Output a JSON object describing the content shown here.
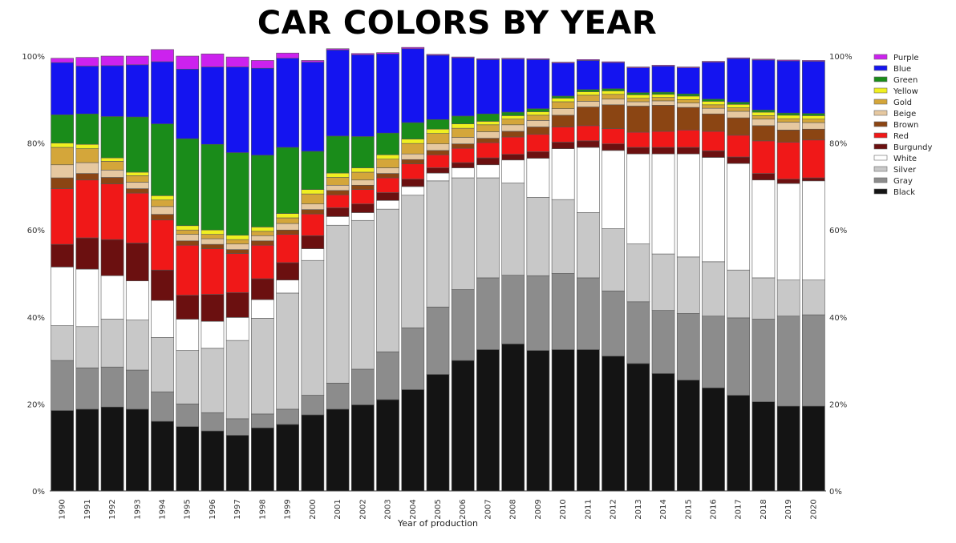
{
  "chart_data": {
    "type": "bar",
    "stacked": true,
    "normalized_percent": true,
    "title": "CAR COLORS BY YEAR",
    "xlabel": "Year of production",
    "ylabel": "",
    "ylim": [
      0,
      100
    ],
    "y_ticks": [
      "0%",
      "20%",
      "40%",
      "60%",
      "80%",
      "100%"
    ],
    "y_tick_values": [
      0,
      20,
      40,
      60,
      80,
      100
    ],
    "grid": false,
    "legend_position": "right",
    "categories": [
      "1990",
      "1991",
      "1992",
      "1993",
      "1994",
      "1995",
      "1996",
      "1997",
      "1998",
      "1999",
      "2000",
      "2001",
      "2002",
      "2003",
      "2004",
      "2005",
      "2006",
      "2007",
      "2008",
      "2009",
      "2010",
      "2011",
      "2012",
      "2013",
      "2014",
      "2015",
      "2016",
      "2017",
      "2018",
      "2019",
      "2020"
    ],
    "legend_order": [
      "Purple",
      "Blue",
      "Green",
      "Yellow",
      "Gold",
      "Beige",
      "Brown",
      "Red",
      "Burgundy",
      "White",
      "Silver",
      "Gray",
      "Black"
    ],
    "series": [
      {
        "name": "Black",
        "color": "#141414",
        "values": [
          18.5,
          18.8,
          19.3,
          18.8,
          16,
          14.8,
          13.8,
          12.8,
          14.5,
          15.3,
          17.5,
          18.8,
          19.8,
          21,
          23.3,
          26.8,
          30,
          32.5,
          33.8,
          32.3,
          32.5,
          32.5,
          31,
          29.3,
          27,
          25.5,
          23.7,
          22,
          20.5,
          19.5,
          19.5
        ]
      },
      {
        "name": "Gray",
        "color": "#8c8c8c",
        "values": [
          11.5,
          9.5,
          9.2,
          9,
          6.8,
          5.2,
          4.2,
          3.8,
          3.2,
          3.5,
          4.5,
          6,
          8.2,
          11,
          14.2,
          15.5,
          16.3,
          16.5,
          15.8,
          17.2,
          17.5,
          16.5,
          15,
          14.2,
          14.5,
          15.3,
          16.5,
          17.8,
          19,
          20.7,
          21
        ]
      },
      {
        "name": "Silver",
        "color": "#c8c8c8",
        "values": [
          8,
          9.5,
          11,
          11.5,
          12.5,
          12.3,
          14.8,
          18,
          22,
          26.7,
          31,
          36.3,
          34.2,
          32.8,
          30.5,
          29,
          25.7,
          23,
          21.2,
          18,
          17,
          15,
          14.3,
          13.3,
          13,
          13,
          12.5,
          11,
          9.5,
          8.3,
          8
        ]
      },
      {
        "name": "White",
        "color": "#ffffff",
        "values": [
          13.5,
          13.2,
          10,
          9,
          8.5,
          7.2,
          6.2,
          5.3,
          4.3,
          3,
          2.7,
          2,
          1.8,
          2,
          2,
          1.8,
          2.3,
          3,
          5.3,
          9,
          11.7,
          15,
          18,
          20.7,
          23,
          23.7,
          24,
          24.5,
          22.5,
          22.2,
          22.8
        ]
      },
      {
        "name": "Burgundy",
        "color": "#6b1010",
        "values": [
          5.2,
          7.2,
          8.3,
          8.7,
          7,
          5.5,
          6.2,
          5.7,
          4.8,
          4,
          3,
          2,
          2,
          1.8,
          1.7,
          1.2,
          1.2,
          1.6,
          1.3,
          1.5,
          1.5,
          1.5,
          1.5,
          1.5,
          1.5,
          1.5,
          1.5,
          1.5,
          1.5,
          1,
          0.7
        ]
      },
      {
        "name": "Red",
        "color": "#f01818",
        "values": [
          12.8,
          13.3,
          12.8,
          11.5,
          11.5,
          11.5,
          10.5,
          9,
          7.7,
          6.5,
          5,
          3,
          3.3,
          3.4,
          3.5,
          3,
          3.3,
          3.5,
          4,
          4,
          3.5,
          3.5,
          3.5,
          3.5,
          3.7,
          4,
          4.5,
          5,
          7.5,
          8.5,
          8.7
        ]
      },
      {
        "name": "Brown",
        "color": "#8b4513",
        "values": [
          2.5,
          1.5,
          1.5,
          1,
          1.3,
          1,
          1,
          0.9,
          1,
          1,
          1,
          1,
          1,
          1,
          1,
          1,
          1,
          1,
          1.3,
          1.7,
          2.7,
          4.3,
          5.5,
          6,
          6,
          5.2,
          4,
          4,
          3.5,
          2.8,
          2.5
        ]
      },
      {
        "name": "Beige",
        "color": "#e6c8a0",
        "values": [
          3,
          2.5,
          1.7,
          1.5,
          1.8,
          1.5,
          1.3,
          1.3,
          1.2,
          1.5,
          1.3,
          1.2,
          1.2,
          1.3,
          1.3,
          1.5,
          1.5,
          1.5,
          1.5,
          1.5,
          1.5,
          1.3,
          1.3,
          1,
          1,
          1,
          1.3,
          1.5,
          1.5,
          1.8,
          1.5
        ]
      },
      {
        "name": "Gold",
        "color": "#d4a63a",
        "values": [
          4,
          3.2,
          2,
          1.5,
          1.5,
          1,
          1,
          1,
          1,
          1.3,
          2.3,
          1.8,
          1.8,
          2,
          2.4,
          2.4,
          2.1,
          1.6,
          1.3,
          1.2,
          1.6,
          1.4,
          1.1,
          0.8,
          0.8,
          0.8,
          0.8,
          0.8,
          0.8,
          0.8,
          0.8
        ]
      },
      {
        "name": "Yellow",
        "color": "#f0f020",
        "values": [
          1,
          1,
          0.8,
          0.8,
          1,
          1,
          1,
          1,
          1,
          1,
          1,
          1,
          1,
          1,
          1,
          1,
          1,
          0.8,
          0.8,
          0.8,
          0.8,
          0.8,
          0.8,
          0.8,
          0.7,
          0.8,
          0.8,
          0.8,
          0.8,
          0.8,
          0.8
        ]
      },
      {
        "name": "Green",
        "color": "#1a8c1a",
        "values": [
          6.5,
          7,
          9.5,
          12.7,
          16.5,
          20,
          19.7,
          19,
          16.5,
          15.2,
          8.8,
          8.5,
          7.2,
          5,
          3.8,
          2.2,
          1.8,
          1.7,
          0.8,
          0.7,
          0.5,
          0.5,
          0.5,
          0.5,
          0.5,
          0.5,
          0.5,
          0.5,
          0.5,
          0.5,
          0.5
        ]
      },
      {
        "name": "Blue",
        "color": "#1414f0",
        "values": [
          12,
          11,
          11.7,
          12,
          14.3,
          16,
          17.8,
          19.7,
          20,
          20.5,
          20.5,
          19.8,
          18.8,
          18.2,
          17,
          14.8,
          13.4,
          12.5,
          12.2,
          11.3,
          7.6,
          6.7,
          6,
          5.7,
          6,
          6,
          8.5,
          10,
          11.5,
          12,
          12
        ]
      },
      {
        "name": "Purple",
        "color": "#cc22ee",
        "values": [
          1,
          2,
          2.2,
          2,
          2.8,
          3,
          3,
          2.3,
          1.8,
          1.2,
          0.4,
          0.3,
          0.3,
          0.3,
          0.3,
          0.2,
          0.2,
          0.2,
          0.2,
          0.2,
          0.2,
          0.2,
          0.2,
          0.2,
          0.2,
          0.2,
          0.2,
          0.2,
          0.2,
          0.2,
          0.2
        ]
      }
    ]
  }
}
